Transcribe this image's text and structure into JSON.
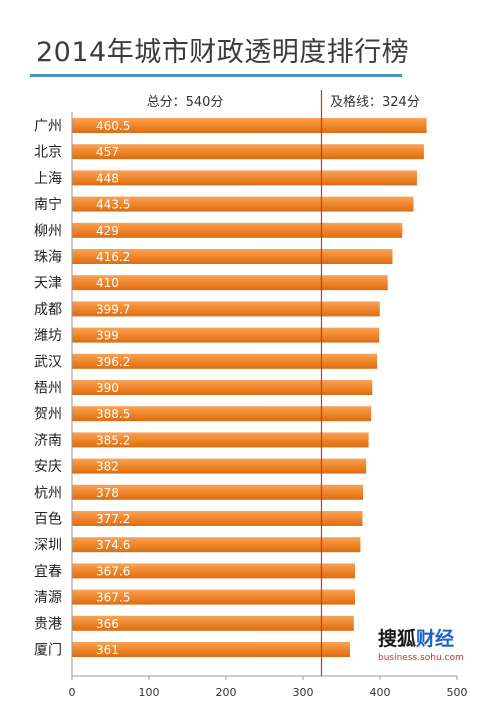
{
  "title": "2014年城市财政透明度排行榜",
  "chart_data": {
    "type": "bar",
    "orientation": "horizontal",
    "categories": [
      "广州",
      "北京",
      "上海",
      "南宁",
      "柳州",
      "珠海",
      "天津",
      "成都",
      "潍坊",
      "武汉",
      "梧州",
      "贺州",
      "济南",
      "安庆",
      "杭州",
      "百色",
      "深圳",
      "宜春",
      "清源",
      "贵港",
      "厦门"
    ],
    "values": [
      460.5,
      457,
      448,
      443.5,
      429,
      416.2,
      410,
      399.7,
      399,
      396.2,
      390,
      388.5,
      385.2,
      382,
      378,
      377.2,
      374.6,
      367.6,
      367.5,
      366,
      361
    ],
    "value_labels": [
      "460.5",
      "457",
      "448",
      "443.5",
      "429",
      "416.2",
      "410",
      "399.7",
      "399",
      "396.2",
      "390",
      "388.5",
      "385.2",
      "382",
      "378",
      "377.2",
      "374.6",
      "367.6",
      "367.5",
      "366",
      "361"
    ],
    "xlim": [
      0,
      500
    ],
    "x_ticks": [
      0,
      100,
      200,
      300,
      400,
      500
    ],
    "reference_line": {
      "value": 324,
      "label": "及格线：324分"
    },
    "total_label": "总分：540分",
    "bar_color": "#f0862a",
    "reference_color": "#c0392b",
    "grid": false
  },
  "logo": {
    "cn_main": "搜狐",
    "cn_accent": "财经",
    "en": "business.sohu.com"
  }
}
